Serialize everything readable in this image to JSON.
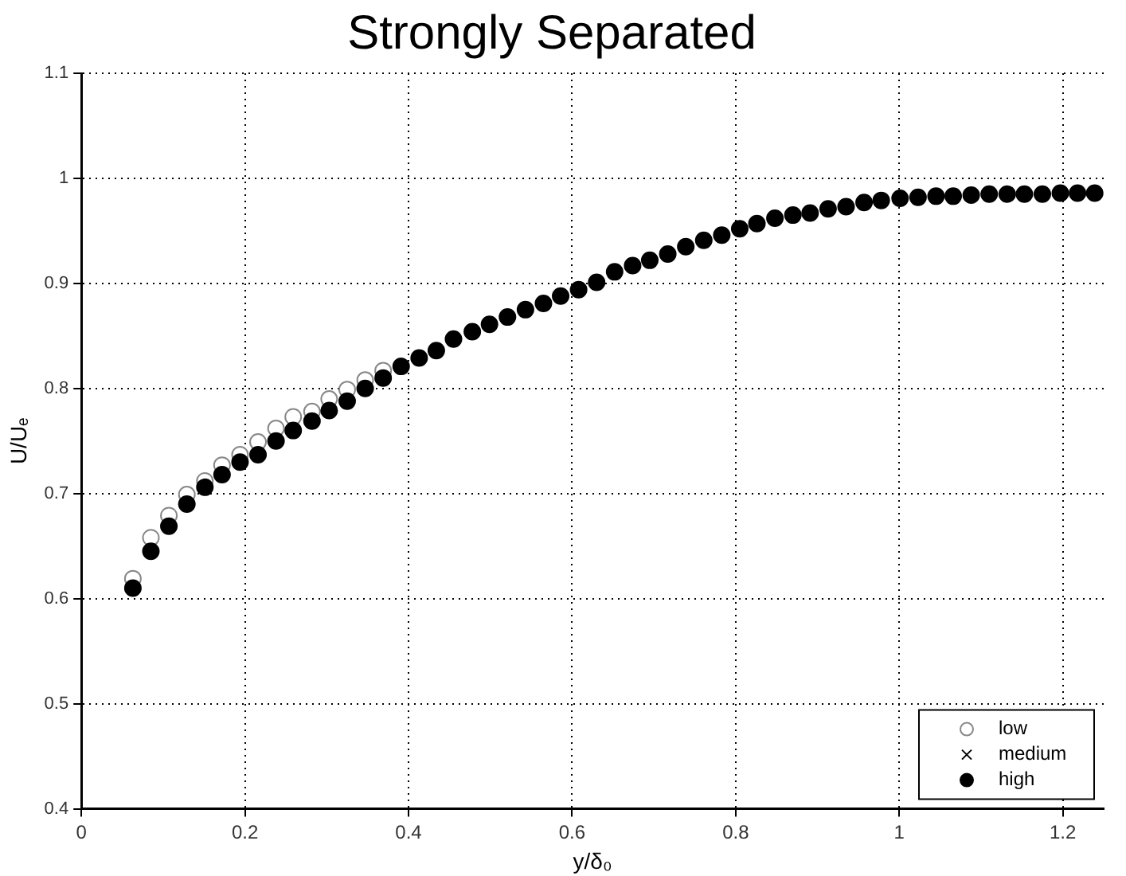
{
  "chart_data": {
    "type": "scatter",
    "title": "Strongly Separated",
    "xlabel": "y/δ₀",
    "ylabel": "U/Uₑ",
    "x": [
      0.063,
      0.085,
      0.107,
      0.129,
      0.151,
      0.172,
      0.194,
      0.216,
      0.238,
      0.259,
      0.282,
      0.303,
      0.325,
      0.347,
      0.369,
      0.391,
      0.413,
      0.434,
      0.455,
      0.478,
      0.499,
      0.521,
      0.543,
      0.565,
      0.586,
      0.608,
      0.63,
      0.652,
      0.674,
      0.695,
      0.717,
      0.739,
      0.761,
      0.783,
      0.805,
      0.826,
      0.848,
      0.87,
      0.891,
      0.913,
      0.935,
      0.957,
      0.978,
      1.001,
      1.023,
      1.045,
      1.066,
      1.088,
      1.11,
      1.132,
      1.153,
      1.175,
      1.197,
      1.218,
      1.239
    ],
    "series": [
      {
        "name": "low",
        "color": "#ffffff",
        "marker": "circle",
        "values": [
          0.619,
          0.658,
          0.679,
          0.699,
          0.712,
          0.727,
          0.737,
          0.749,
          0.762,
          0.773,
          0.778,
          0.79,
          0.799,
          0.808,
          0.817,
          null,
          null,
          null,
          null,
          null,
          null,
          null,
          null,
          null,
          null,
          null,
          null,
          null,
          null,
          null,
          null,
          null,
          null,
          null,
          null,
          null,
          null,
          null,
          null,
          null,
          null,
          null,
          null,
          null,
          null,
          null,
          null,
          null,
          null,
          null,
          null,
          null,
          null,
          null,
          null
        ]
      },
      {
        "name": "medium",
        "color": "#000000",
        "marker": "cross",
        "values": [
          null,
          null,
          null,
          null,
          null,
          null,
          null,
          null,
          null,
          null,
          null,
          null,
          null,
          null,
          null,
          null,
          null,
          null,
          null,
          null,
          null,
          null,
          null,
          null,
          null,
          null,
          null,
          null,
          null,
          null,
          null,
          null,
          null,
          null,
          null,
          null,
          null,
          null,
          null,
          null,
          null,
          null,
          null,
          null,
          null,
          null,
          null,
          null,
          null,
          null,
          null,
          null,
          null,
          null,
          null
        ]
      },
      {
        "name": "high",
        "color": "#000000",
        "marker": "circle",
        "values": [
          0.61,
          0.645,
          0.669,
          0.69,
          0.706,
          0.718,
          0.73,
          0.737,
          0.75,
          0.76,
          0.769,
          0.779,
          0.788,
          0.8,
          0.81,
          0.821,
          0.829,
          0.836,
          0.847,
          0.854,
          0.861,
          0.868,
          0.875,
          0.881,
          0.888,
          0.894,
          0.901,
          0.911,
          0.917,
          0.922,
          0.928,
          0.935,
          0.941,
          0.946,
          0.952,
          0.957,
          0.962,
          0.965,
          0.967,
          0.971,
          0.973,
          0.977,
          0.979,
          0.981,
          0.982,
          0.983,
          0.983,
          0.984,
          0.985,
          0.985,
          0.985,
          0.985,
          0.986,
          0.986,
          0.986
        ]
      }
    ],
    "xlim": [
      0,
      1.25
    ],
    "xticks": [
      0,
      0.2,
      0.4,
      0.6,
      0.8,
      1,
      1.2
    ],
    "ylim": [
      0.4,
      1.1
    ],
    "yticks": [
      0.4,
      0.5,
      0.6,
      0.7,
      0.8,
      0.9,
      1,
      1.1
    ],
    "grid": true,
    "legend": "bottom right"
  }
}
